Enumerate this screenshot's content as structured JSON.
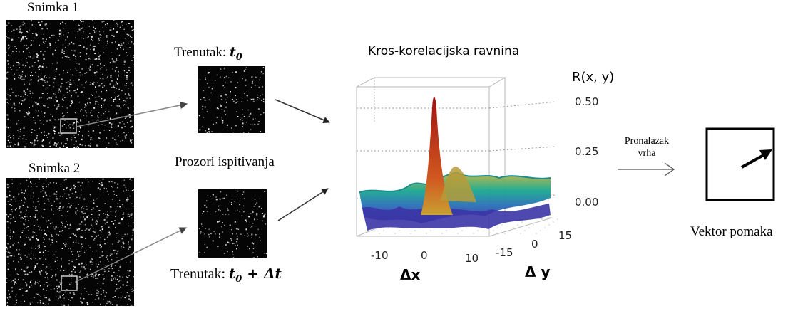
{
  "frame1": {
    "label": "Snimka 1"
  },
  "frame2": {
    "label": "Snimka 2"
  },
  "window_top": {
    "label_prefix": "Trenutak: ",
    "label_math": "t",
    "label_sub": "0",
    "label_suffix": ""
  },
  "window_bottom": {
    "label_prefix": "Trenutak: ",
    "label_math": "t",
    "label_sub": "0",
    "label_suffix": " + Δt"
  },
  "windows_caption": "Prozori ispitivanja",
  "correlation": {
    "title": "Kros-korelacijska ravnina",
    "z_label": "R(x, y)",
    "z_ticks": [
      "0.50",
      "0.25",
      "0.00"
    ],
    "x_ticks": [
      "-10",
      "0",
      "10"
    ],
    "y_ticks": [
      "-15",
      "0",
      "15"
    ],
    "x_label": "Δx",
    "y_label": "Δ y"
  },
  "peak_step": {
    "line1": "Pronalazak",
    "line2": "vrha"
  },
  "result": {
    "label": "Vektor pomaka"
  },
  "colors": {
    "surface_low": "#4a3aa8",
    "surface_mid": "#1aa38c",
    "surface_high": "#c8b43c",
    "peak": "#b01818"
  }
}
